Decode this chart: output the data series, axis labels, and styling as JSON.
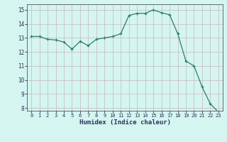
{
  "x": [
    0,
    1,
    2,
    3,
    4,
    5,
    6,
    7,
    8,
    9,
    10,
    11,
    12,
    13,
    14,
    15,
    16,
    17,
    18,
    19,
    20,
    21,
    22,
    23
  ],
  "y": [
    13.1,
    13.1,
    12.9,
    12.85,
    12.7,
    12.2,
    12.75,
    12.45,
    12.9,
    13.0,
    13.1,
    13.3,
    14.6,
    14.75,
    14.75,
    15.0,
    14.8,
    14.65,
    13.3,
    11.35,
    11.0,
    9.5,
    8.3,
    7.7
  ],
  "xlim": [
    -0.5,
    23.5
  ],
  "ylim": [
    7.8,
    15.4
  ],
  "yticks": [
    8,
    9,
    10,
    11,
    12,
    13,
    14,
    15
  ],
  "xticks": [
    0,
    1,
    2,
    3,
    4,
    5,
    6,
    7,
    8,
    9,
    10,
    11,
    12,
    13,
    14,
    15,
    16,
    17,
    18,
    19,
    20,
    21,
    22,
    23
  ],
  "xlabel": "Humidex (Indice chaleur)",
  "line_color": "#2d7d6e",
  "marker": "+",
  "bg_color": "#d4f5f0",
  "grid_color_major": "#c8b8b8",
  "grid_color_minor": "#ddd0d0",
  "xlabel_color": "#2d3060",
  "tick_color": "#2d3060"
}
